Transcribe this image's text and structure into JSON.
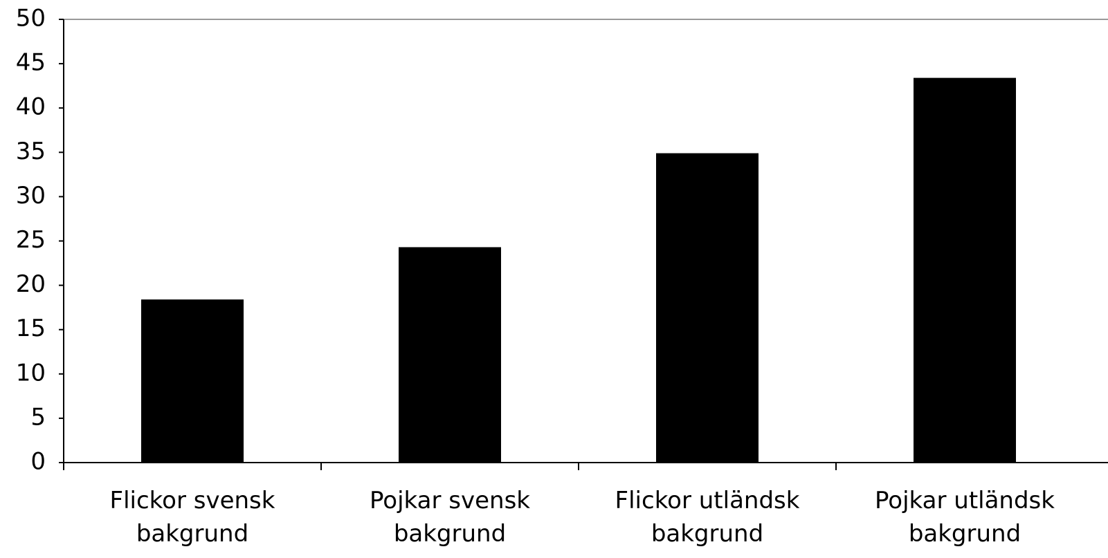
{
  "chart_data": {
    "type": "bar",
    "categories": [
      "Flickor svensk bakgrund",
      "Pojkar svensk bakgrund",
      "Flickor utländsk bakgrund",
      "Pojkar utländsk bakgrund"
    ],
    "values": [
      18.4,
      24.3,
      34.9,
      43.4
    ],
    "color": "#000000",
    "ylim": [
      0,
      50
    ],
    "yticks": [
      0,
      5,
      10,
      15,
      20,
      25,
      30,
      35,
      40,
      45,
      50
    ],
    "grid": false
  }
}
